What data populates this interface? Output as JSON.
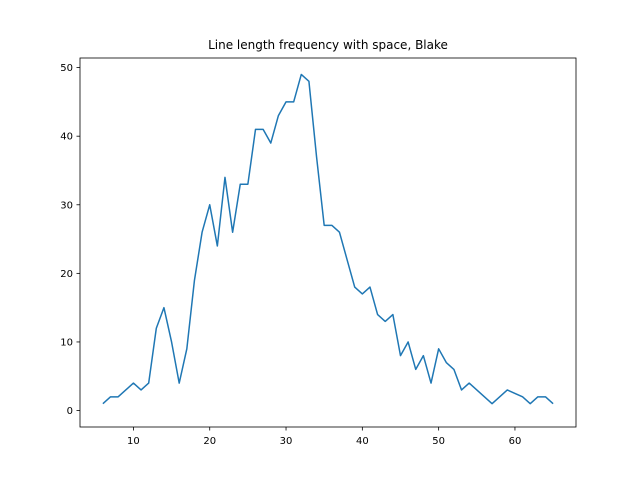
{
  "chart_data": {
    "type": "line",
    "title": "Line length frequency with space, Blake",
    "xlabel": "",
    "ylabel": "",
    "xlim": [
      3,
      68
    ],
    "ylim": [
      -2.4,
      51.4
    ],
    "xticks": [
      10,
      20,
      30,
      40,
      50,
      60
    ],
    "yticks": [
      0,
      10,
      20,
      30,
      40,
      50
    ],
    "grid": false,
    "series": [
      {
        "color": "#1f77b4",
        "x": [
          6,
          7,
          8,
          9,
          10,
          11,
          12,
          13,
          14,
          15,
          16,
          17,
          18,
          19,
          20,
          21,
          22,
          23,
          24,
          25,
          26,
          27,
          28,
          29,
          30,
          31,
          32,
          33,
          34,
          35,
          36,
          37,
          38,
          39,
          40,
          41,
          42,
          43,
          44,
          45,
          46,
          47,
          48,
          49,
          50,
          51,
          52,
          53,
          54,
          55,
          56,
          57,
          58,
          59,
          60,
          61,
          62,
          63,
          64,
          65
        ],
        "y": [
          1,
          2,
          2,
          3,
          4,
          3,
          4,
          12,
          15,
          10,
          4,
          9,
          19,
          26,
          30,
          24,
          34,
          26,
          33,
          33,
          41,
          41,
          39,
          43,
          45,
          45,
          49,
          48,
          37,
          27,
          27,
          26,
          22,
          18,
          17,
          18,
          14,
          13,
          14,
          8,
          10,
          6,
          8,
          4,
          9,
          7,
          6,
          3,
          4,
          3,
          2,
          1,
          2,
          3,
          2.5,
          2,
          1,
          2,
          2,
          1
        ]
      }
    ]
  }
}
